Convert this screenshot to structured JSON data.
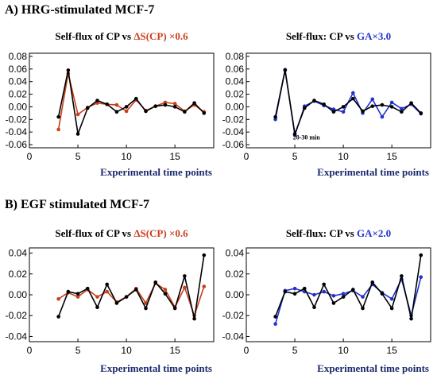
{
  "section_a": "A) HRG-stimulated MCF-7",
  "section_b": "B) EGF stimulated MCF-7",
  "colors": {
    "black": "#000000",
    "red": "#c8401c",
    "blue": "#2233cc",
    "label": "#1a2a6c"
  },
  "chart_data": [
    {
      "type": "line",
      "title_parts": [
        {
          "text": "Self-flux of CP",
          "color": "#000000"
        },
        {
          "text": "  vs ",
          "color": "#000000"
        },
        {
          "text": "ΔS(CP) ×0.6",
          "color": "#c8401c"
        }
      ],
      "xlabel": "Experimental time points",
      "xlim": [
        0,
        19
      ],
      "ylim": [
        -0.065,
        0.085
      ],
      "xticks": [
        0,
        5,
        10,
        15
      ],
      "yticks": [
        -0.06,
        -0.04,
        -0.02,
        0.0,
        0.02,
        0.04,
        0.06,
        0.08
      ],
      "ytick_labels": [
        "-0.06",
        "-0.04",
        "-0.02",
        "0.00",
        "0.02",
        "0.04",
        "0.06",
        "0.08"
      ],
      "series": [
        {
          "color": "#c8401c",
          "x": [
            3,
            4,
            5,
            6,
            7,
            8,
            9,
            10,
            11,
            12,
            13,
            14,
            15,
            16,
            17,
            18
          ],
          "y": [
            -0.036,
            0.053,
            -0.012,
            -0.001,
            0.006,
            0.004,
            0.003,
            -0.007,
            0.011,
            -0.006,
            0.001,
            0.007,
            0.005,
            -0.007,
            0.003,
            -0.008
          ]
        },
        {
          "color": "#000000",
          "x": [
            3,
            4,
            5,
            6,
            7,
            8,
            9,
            10,
            11,
            12,
            13,
            14,
            15,
            16,
            17,
            18
          ],
          "y": [
            -0.016,
            0.058,
            -0.043,
            -0.002,
            0.01,
            0.004,
            -0.008,
            0.0,
            0.013,
            -0.007,
            0.001,
            0.003,
            0.0,
            -0.008,
            0.006,
            -0.01
          ]
        }
      ],
      "annotations": []
    },
    {
      "type": "line",
      "title_parts": [
        {
          "text": "Self-flux: CP vs ",
          "color": "#000000"
        },
        {
          "text": "GA×3.0",
          "color": "#2233cc"
        }
      ],
      "xlabel": "Experimental time points",
      "xlim": [
        0,
        19
      ],
      "ylim": [
        -0.065,
        0.085
      ],
      "xticks": [
        0,
        5,
        10,
        15
      ],
      "yticks": [
        -0.06,
        -0.04,
        -0.02,
        0.0,
        0.02,
        0.04,
        0.06,
        0.08
      ],
      "ytick_labels": [
        "-0.06",
        "-0.04",
        "-0.02",
        "0.00",
        "0.02",
        "0.04",
        "0.06",
        "0.08"
      ],
      "series": [
        {
          "color": "#2233cc",
          "x": [
            3,
            4,
            5,
            6,
            7,
            8,
            9,
            10,
            11,
            12,
            13,
            14,
            15,
            16,
            17,
            18
          ],
          "y": [
            -0.02,
            0.059,
            -0.045,
            0.001,
            0.009,
            0.002,
            -0.004,
            -0.008,
            0.022,
            -0.01,
            0.012,
            -0.016,
            0.007,
            -0.003,
            0.004,
            -0.011
          ]
        },
        {
          "color": "#000000",
          "x": [
            3,
            4,
            5,
            6,
            7,
            8,
            9,
            10,
            11,
            12,
            13,
            14,
            15,
            16,
            17,
            18
          ],
          "y": [
            -0.016,
            0.058,
            -0.043,
            -0.002,
            0.01,
            0.004,
            -0.008,
            0.0,
            0.013,
            -0.007,
            0.001,
            0.003,
            0.0,
            -0.008,
            0.006,
            -0.01
          ]
        }
      ],
      "annotations": [
        {
          "text": "20-30 min",
          "x": 6.2,
          "y": -0.052
        }
      ]
    },
    {
      "type": "line",
      "title_parts": [
        {
          "text": "Self-flux of CP",
          "color": "#000000"
        },
        {
          "text": "  vs ",
          "color": "#000000"
        },
        {
          "text": "ΔS(CP) ×0.6",
          "color": "#c8401c"
        }
      ],
      "xlabel": "Experimental time points",
      "xlim": [
        0,
        19
      ],
      "ylim": [
        -0.045,
        0.045
      ],
      "xticks": [
        0,
        5,
        10,
        15
      ],
      "yticks": [
        -0.04,
        -0.02,
        0.0,
        0.02,
        0.04
      ],
      "ytick_labels": [
        "-0.04",
        "-0.02",
        "0.00",
        "0.02",
        "0.04"
      ],
      "series": [
        {
          "color": "#c8401c",
          "x": [
            3,
            4,
            5,
            6,
            7,
            8,
            9,
            10,
            11,
            12,
            13,
            14,
            15,
            16,
            17,
            18
          ],
          "y": [
            -0.004,
            0.002,
            -0.002,
            0.005,
            -0.002,
            0.003,
            -0.007,
            -0.002,
            0.006,
            -0.008,
            0.011,
            0.005,
            -0.012,
            0.007,
            -0.02,
            0.008
          ]
        },
        {
          "color": "#000000",
          "x": [
            3,
            4,
            5,
            6,
            7,
            8,
            9,
            10,
            11,
            12,
            13,
            14,
            15,
            16,
            17,
            18
          ],
          "y": [
            -0.021,
            0.003,
            0.001,
            0.006,
            -0.012,
            0.01,
            -0.008,
            -0.002,
            0.005,
            -0.013,
            0.012,
            0.001,
            -0.013,
            0.018,
            -0.023,
            0.038
          ]
        }
      ],
      "annotations": []
    },
    {
      "type": "line",
      "title_parts": [
        {
          "text": "Self-flux: CP vs ",
          "color": "#000000"
        },
        {
          "text": "GA×2.0",
          "color": "#2233cc"
        }
      ],
      "xlabel": "Experimental time points",
      "xlim": [
        0,
        19
      ],
      "ylim": [
        -0.045,
        0.045
      ],
      "xticks": [
        0,
        5,
        10,
        15
      ],
      "yticks": [
        -0.04,
        -0.02,
        0.0,
        0.02,
        0.04
      ],
      "ytick_labels": [
        "-0.04",
        "-0.02",
        "0.00",
        "0.02",
        "0.04"
      ],
      "series": [
        {
          "color": "#2233cc",
          "x": [
            3,
            4,
            5,
            6,
            7,
            8,
            9,
            10,
            11,
            12,
            13,
            14,
            15,
            16,
            17,
            18
          ],
          "y": [
            -0.028,
            0.004,
            0.006,
            0.003,
            0.0,
            0.003,
            -0.001,
            0.001,
            0.004,
            -0.002,
            0.01,
            0.002,
            -0.004,
            0.015,
            -0.02,
            0.017
          ]
        },
        {
          "color": "#000000",
          "x": [
            3,
            4,
            5,
            6,
            7,
            8,
            9,
            10,
            11,
            12,
            13,
            14,
            15,
            16,
            17,
            18
          ],
          "y": [
            -0.021,
            0.003,
            0.001,
            0.006,
            -0.012,
            0.01,
            -0.008,
            -0.002,
            0.005,
            -0.013,
            0.012,
            0.001,
            -0.013,
            0.018,
            -0.023,
            0.038
          ]
        }
      ],
      "annotations": []
    }
  ]
}
